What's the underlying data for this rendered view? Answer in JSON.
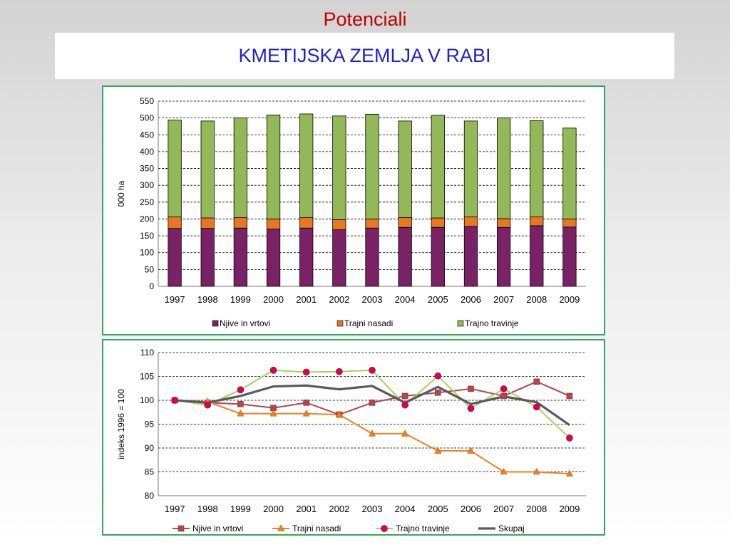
{
  "page": {
    "title": "Potenciali",
    "subtitle": "KMETIJSKA ZEMLJA V RABI"
  },
  "colors": {
    "title": "#c00000",
    "subtitle": "#2222cc",
    "panel_border": "#3aa35f"
  },
  "chart_data": [
    {
      "type": "bar",
      "stacked": true,
      "title": "",
      "xlabel": "",
      "ylabel": "000 ha",
      "ylim": [
        0,
        550
      ],
      "yticks": [
        0,
        50,
        100,
        150,
        200,
        250,
        300,
        350,
        400,
        450,
        500,
        550
      ],
      "grid": true,
      "legend_position": "bottom",
      "categories": [
        "1997",
        "1998",
        "1999",
        "2000",
        "2001",
        "2002",
        "2003",
        "2004",
        "2005",
        "2006",
        "2007",
        "2008",
        "2009"
      ],
      "series": [
        {
          "name": "Njive in vrtovi",
          "color": "#7a2266",
          "values": [
            172,
            172,
            173,
            170,
            173,
            168,
            173,
            175,
            175,
            178,
            175,
            180,
            176
          ]
        },
        {
          "name": "Trajni nasadi",
          "color": "#e87722",
          "values": [
            34,
            31,
            31,
            30,
            31,
            30,
            27,
            29,
            28,
            28,
            26,
            26,
            24
          ]
        },
        {
          "name": "Trajno travinje",
          "color": "#93b857",
          "values": [
            288,
            288,
            296,
            309,
            308,
            308,
            311,
            287,
            305,
            285,
            299,
            286,
            270
          ]
        }
      ]
    },
    {
      "type": "line",
      "title": "",
      "xlabel": "",
      "ylabel": "indeks 1996 = 100",
      "ylim": [
        80,
        110
      ],
      "yticks": [
        80,
        85,
        90,
        95,
        100,
        105,
        110
      ],
      "grid": true,
      "legend_position": "bottom",
      "categories": [
        "1997",
        "1998",
        "1999",
        "2000",
        "2001",
        "2002",
        "2003",
        "2004",
        "2005",
        "2006",
        "2007",
        "2008",
        "2009"
      ],
      "series": [
        {
          "name": "Njive in vrtovi",
          "color": "#b0474d",
          "marker": "square",
          "values": [
            100.0,
            99.5,
            99.2,
            98.4,
            99.5,
            97.0,
            99.5,
            100.9,
            101.6,
            102.4,
            100.9,
            103.9,
            100.9
          ]
        },
        {
          "name": "Trajni nasadi",
          "color": "#f0801e",
          "marker": "triangle",
          "values": [
            100.0,
            99.7,
            97.2,
            97.2,
            97.2,
            97.0,
            93.0,
            93.0,
            89.4,
            89.4,
            85.0,
            85.0,
            84.6
          ]
        },
        {
          "name": "Trajno travinje",
          "color": "#a9d05e",
          "marker": "circle",
          "marker_color": "#e5003a",
          "values": [
            100.0,
            99.0,
            102.2,
            106.3,
            105.9,
            106.0,
            106.3,
            99.0,
            105.1,
            98.3,
            102.4,
            98.6,
            92.1
          ]
        },
        {
          "name": "Skupaj",
          "color": "#5a5a5a",
          "marker": "none",
          "values": [
            100.0,
            99.5,
            100.9,
            102.9,
            103.1,
            102.3,
            103.0,
            99.5,
            102.8,
            99.2,
            100.8,
            99.6,
            94.8
          ]
        }
      ]
    }
  ]
}
